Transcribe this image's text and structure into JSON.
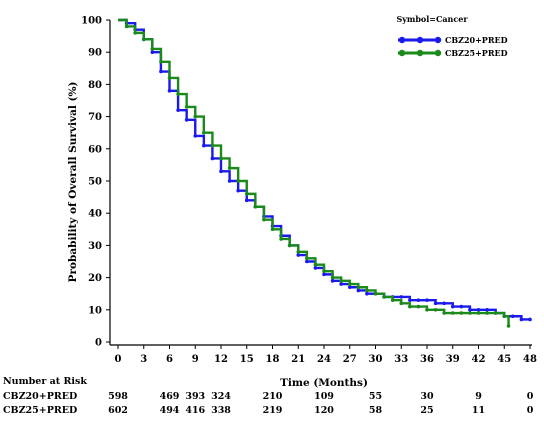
{
  "chart_data": {
    "type": "line",
    "title": "",
    "xlabel": "Time (Months)",
    "ylabel": "Probability of Overall Survival (%)",
    "xlim": [
      0,
      48
    ],
    "ylim": [
      0,
      100
    ],
    "x_ticks": [
      0,
      3,
      6,
      9,
      12,
      15,
      18,
      21,
      24,
      27,
      30,
      33,
      36,
      39,
      42,
      45,
      48
    ],
    "y_ticks": [
      0,
      10,
      20,
      30,
      40,
      50,
      60,
      70,
      80,
      90,
      100
    ],
    "grid": false,
    "legend": {
      "title": "Symbol=Cancer",
      "position": "top-right"
    },
    "series": [
      {
        "name": "CBZ20+PRED",
        "color": "#1a1aee",
        "x": [
          0,
          1,
          2,
          3,
          4,
          5,
          6,
          7,
          8,
          9,
          10,
          11,
          12,
          13,
          14,
          15,
          16,
          17,
          18,
          19,
          20,
          21,
          22,
          23,
          24,
          25,
          26,
          27,
          28,
          29,
          30,
          31,
          32,
          33,
          34,
          35,
          36,
          37,
          38,
          39,
          40,
          41,
          42,
          43,
          44,
          45,
          46,
          47,
          48
        ],
        "values": [
          100,
          99,
          97,
          94,
          90,
          84,
          78,
          72,
          69,
          64,
          61,
          57,
          53,
          50,
          47,
          44,
          42,
          39,
          36,
          33,
          30,
          27,
          25,
          23,
          21,
          19,
          18,
          17,
          16,
          15,
          15,
          14,
          14,
          14,
          13,
          13,
          13,
          12,
          12,
          11,
          11,
          10,
          10,
          10,
          9,
          8,
          8,
          7,
          7
        ]
      },
      {
        "name": "CBZ25+PRED",
        "color": "#1a8a1a",
        "x": [
          0,
          1,
          2,
          3,
          4,
          5,
          6,
          7,
          8,
          9,
          10,
          11,
          12,
          13,
          14,
          15,
          16,
          17,
          18,
          19,
          20,
          21,
          22,
          23,
          24,
          25,
          26,
          27,
          28,
          29,
          30,
          31,
          32,
          33,
          34,
          35,
          36,
          37,
          38,
          39,
          40,
          41,
          42,
          43,
          44,
          45,
          45.5
        ],
        "values": [
          100,
          98,
          96,
          94,
          91,
          87,
          82,
          77,
          73,
          70,
          65,
          61,
          57,
          54,
          50,
          46,
          42,
          38,
          35,
          32,
          30,
          28,
          26,
          24,
          22,
          20,
          19,
          18,
          17,
          16,
          15,
          14,
          13,
          12,
          11,
          11,
          10,
          10,
          9,
          9,
          9,
          9,
          9,
          9,
          9,
          8,
          5
        ]
      }
    ],
    "risk_table": {
      "title": "Number at Risk",
      "rows": [
        {
          "label": "CBZ20+PRED",
          "values": [
            {
              "t": 0,
              "v": "598"
            },
            {
              "t": 6,
              "v": "469"
            },
            {
              "t": 9,
              "v": "393"
            },
            {
              "t": 12,
              "v": "324"
            },
            {
              "t": 18,
              "v": "210"
            },
            {
              "t": 24,
              "v": "109"
            },
            {
              "t": 30,
              "v": "55"
            },
            {
              "t": 36,
              "v": "30"
            },
            {
              "t": 42,
              "v": "9"
            },
            {
              "t": 48,
              "v": "0"
            }
          ]
        },
        {
          "label": "CBZ25+PRED",
          "values": [
            {
              "t": 0,
              "v": "602"
            },
            {
              "t": 6,
              "v": "494"
            },
            {
              "t": 9,
              "v": "416"
            },
            {
              "t": 12,
              "v": "338"
            },
            {
              "t": 18,
              "v": "219"
            },
            {
              "t": 24,
              "v": "120"
            },
            {
              "t": 30,
              "v": "58"
            },
            {
              "t": 36,
              "v": "25"
            },
            {
              "t": 42,
              "v": "11"
            },
            {
              "t": 48,
              "v": "0"
            }
          ]
        }
      ]
    }
  }
}
